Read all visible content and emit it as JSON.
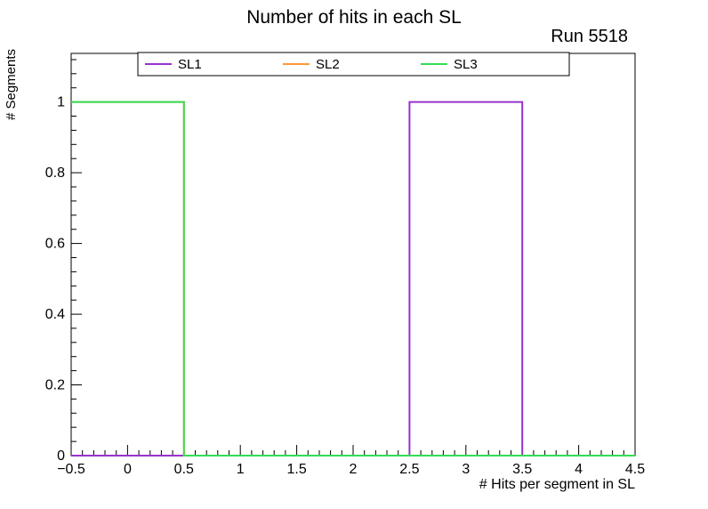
{
  "run_label": "Run 5518",
  "chart_data": {
    "type": "line",
    "style": "step-histogram",
    "title": "Number of hits in each SL",
    "xlabel": "# Hits per segment in SL",
    "ylabel": "# Segments",
    "xlim": [
      -0.5,
      4.5
    ],
    "ylim": [
      0,
      1.1375
    ],
    "grid": false,
    "frame_color": "#000000",
    "background": "#ffffff",
    "x_minor_step": 0.1,
    "y_minor_step": 0.04,
    "x_tick_values": [
      -0.5,
      0,
      0.5,
      1,
      1.5,
      2,
      2.5,
      3,
      3.5,
      4,
      4.5
    ],
    "x_tick_labels": [
      "−0.5",
      "0",
      "0.5",
      "1",
      "1.5",
      "2",
      "2.5",
      "3",
      "3.5",
      "4",
      "4.5"
    ],
    "y_tick_values": [
      0,
      0.2,
      0.4,
      0.6,
      0.8,
      1
    ],
    "y_tick_labels": [
      "0",
      "0.2",
      "0.4",
      "0.6",
      "0.8",
      "1"
    ],
    "bin_edges": [
      -0.5,
      0.5,
      1.5,
      2.5,
      3.5,
      4.5
    ],
    "series": [
      {
        "name": "SL1",
        "color": "#9933cc",
        "counts": [
          0,
          0,
          0,
          1,
          0
        ]
      },
      {
        "name": "SL2",
        "color": "#ff9933",
        "counts": [
          1,
          0,
          0,
          0,
          0
        ]
      },
      {
        "name": "SL3",
        "color": "#33dd55",
        "counts": [
          1,
          0,
          0,
          0,
          0
        ]
      }
    ],
    "legend": {
      "position": "top-inside",
      "entries": [
        "SL1",
        "SL2",
        "SL3"
      ]
    }
  }
}
